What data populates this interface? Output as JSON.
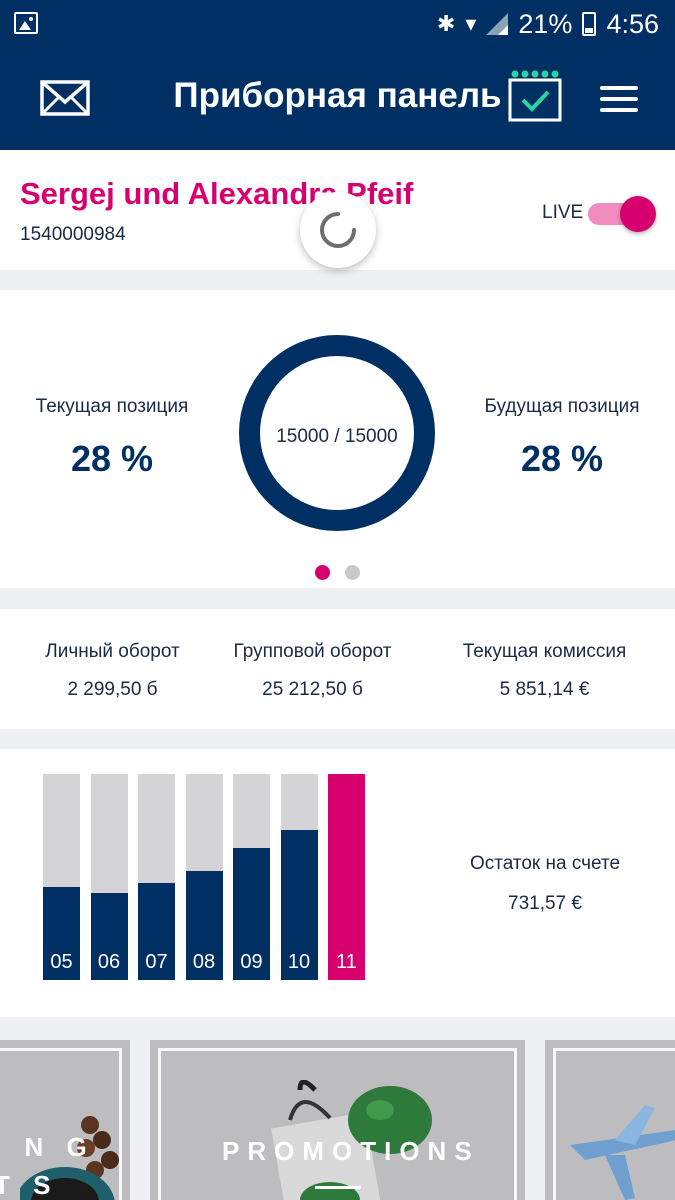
{
  "status_bar": {
    "battery": "21%",
    "time": "4:56"
  },
  "header": {
    "title": "Приборная панель"
  },
  "profile": {
    "name": "Sergej und Alexandra Pfeif",
    "id": "1540000984",
    "live_label": "LIVE",
    "live_on": true
  },
  "positions": {
    "current_label": "Текущая позиция",
    "current_value": "28 %",
    "future_label": "Будущая позиция",
    "future_value": "28 %",
    "ring_text": "15000 / 15000",
    "page_index": 1,
    "page_count": 2
  },
  "turnover": {
    "personal_label": "Личный оборот",
    "personal_value": "2 299,50 б",
    "group_label": "Групповой оборот",
    "group_value": "25 212,50 б",
    "commission_label": "Текущая комиссия",
    "commission_value": "5 851,14 €"
  },
  "chart_data": {
    "type": "bar",
    "categories": [
      "05",
      "06",
      "07",
      "08",
      "09",
      "10",
      "11"
    ],
    "values": [
      0.45,
      0.42,
      0.47,
      0.53,
      0.64,
      0.73,
      1.0
    ],
    "highlight_index": 6,
    "colors": {
      "fill": "#003063",
      "track": "#d4d4d6",
      "highlight": "#d8006e"
    }
  },
  "balance": {
    "label": "Остаток на счете",
    "value": "731,57 €"
  },
  "promos": {
    "left_text_1": "I N G",
    "left_text_2": "T S",
    "center_text": "PROMOTIONS"
  },
  "colors": {
    "primary": "#003063",
    "accent": "#d8006e"
  }
}
